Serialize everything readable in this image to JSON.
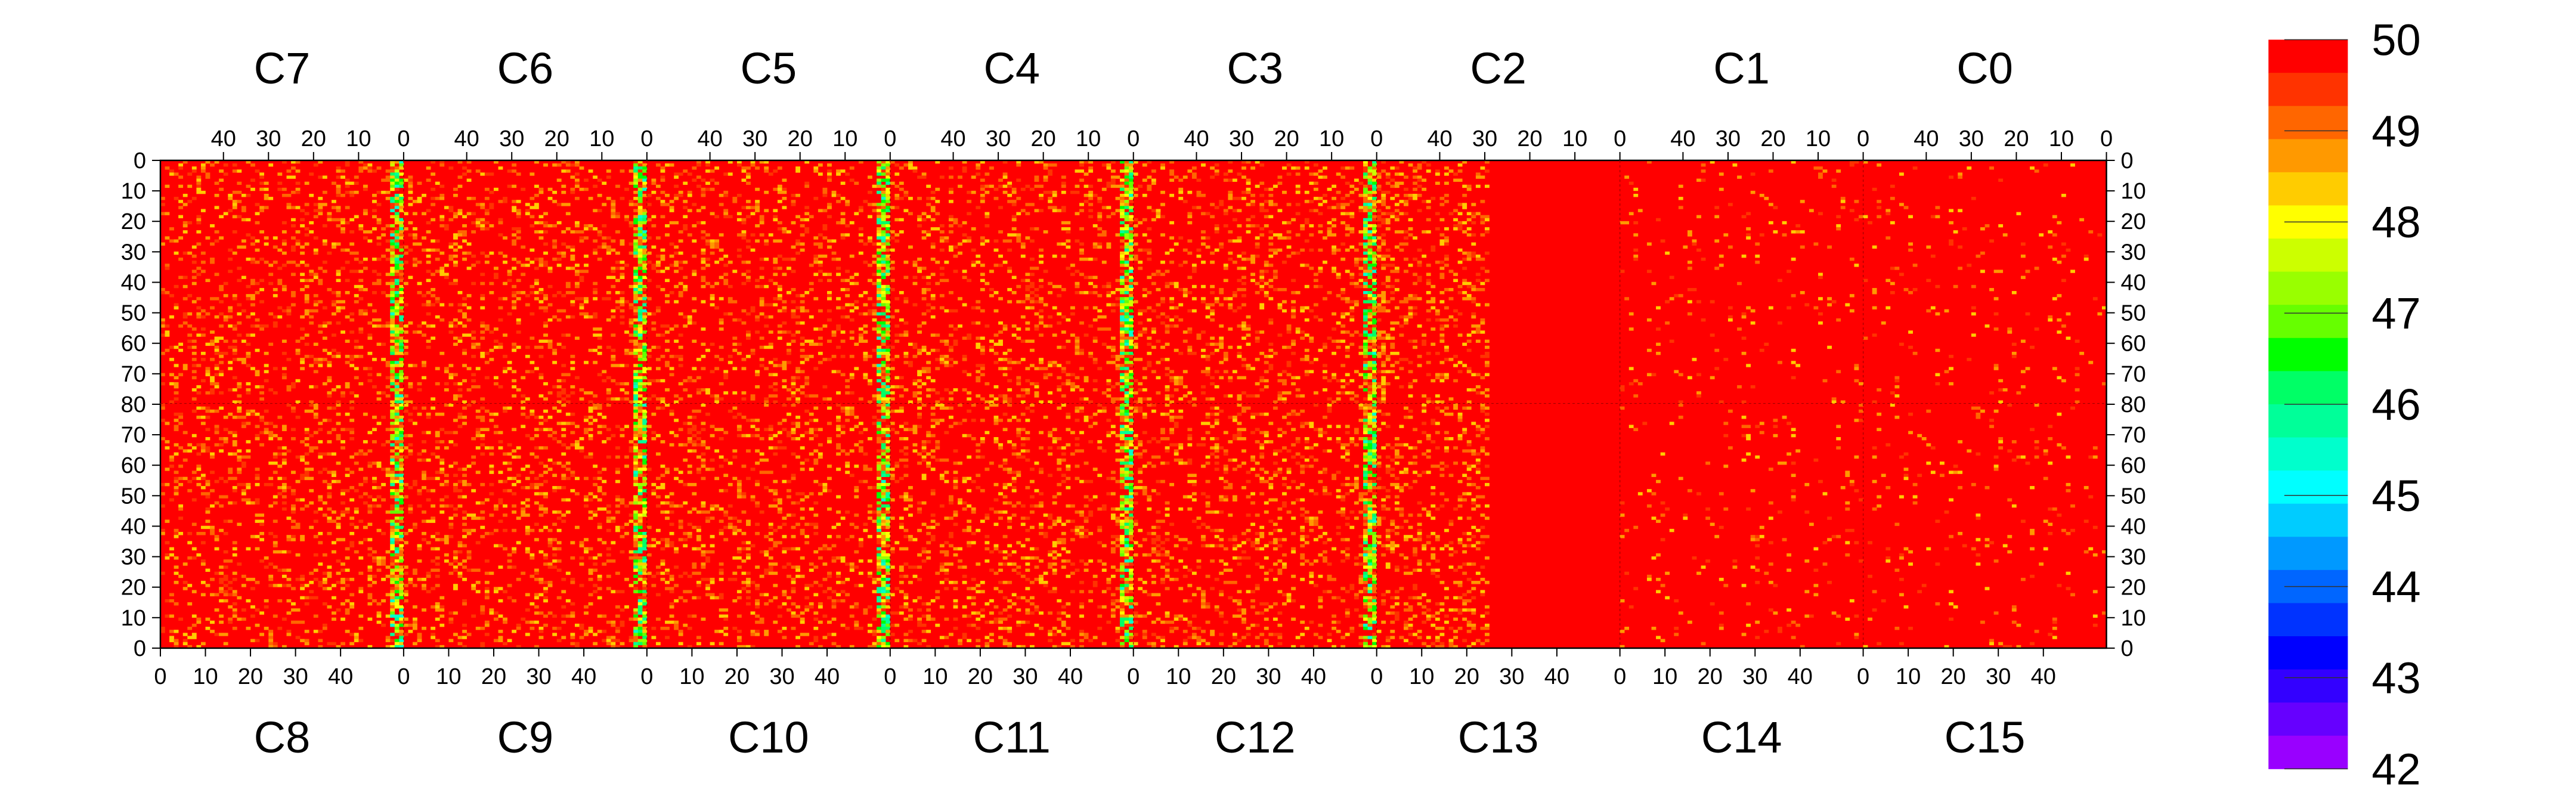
{
  "chart_data": {
    "type": "heatmap",
    "title": "",
    "top_chip_labels": [
      "C7",
      "C6",
      "C5",
      "C4",
      "C3",
      "C2",
      "C1",
      "C0"
    ],
    "bottom_chip_labels": [
      "C8",
      "C9",
      "C10",
      "C11",
      "C12",
      "C13",
      "C14",
      "C15"
    ],
    "top_x_tick_labels": [
      "40",
      "30",
      "20",
      "10",
      "0"
    ],
    "bottom_x_tick_labels": [
      "0",
      "10",
      "20",
      "30",
      "40"
    ],
    "y_tick_labels": [
      "0",
      "10",
      "20",
      "30",
      "40",
      "50",
      "60",
      "70",
      "80",
      "70",
      "60",
      "50",
      "40",
      "30",
      "20",
      "10",
      "0"
    ],
    "chip_columns": 54,
    "rows_per_half": 80,
    "zlim": [
      42,
      50
    ],
    "colorbar_tick_labels": [
      "50",
      "49",
      "48",
      "47",
      "46",
      "45",
      "44",
      "43",
      "42"
    ],
    "colorbar_colors": [
      "#ff0000",
      "#ff3300",
      "#ff6600",
      "#ff9900",
      "#ffcc00",
      "#ffff00",
      "#ccff00",
      "#99ff00",
      "#66ff00",
      "#00ff00",
      "#00ff66",
      "#00ff99",
      "#00ffcc",
      "#00ffff",
      "#00ccff",
      "#0099ff",
      "#0066ff",
      "#0033ff",
      "#0000ff",
      "#3300ff",
      "#6600ff",
      "#9900ff"
    ],
    "grid": false,
    "legend": "colorbar-right",
    "column_profile": {
      "note": "mean value per chip column band; cells near chip edges are lower",
      "high_noise_edge_columns": true
    }
  }
}
